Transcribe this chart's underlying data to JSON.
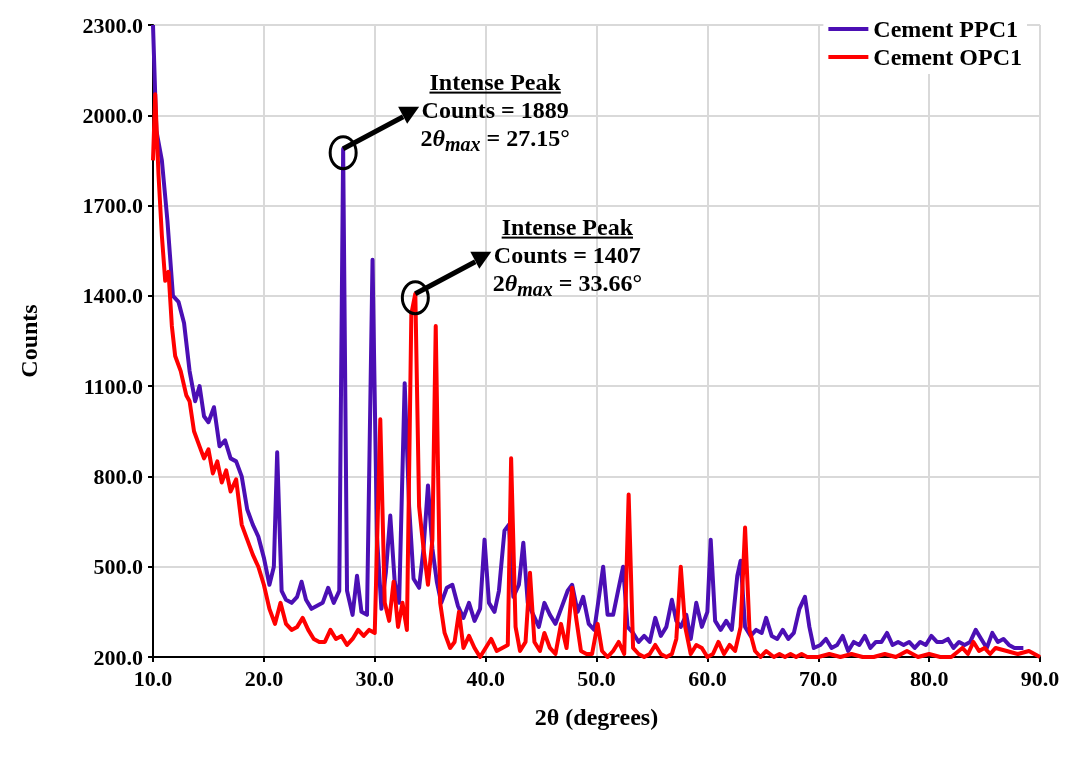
{
  "chart_data": {
    "type": "line",
    "xlabel": "2θ (degrees)",
    "ylabel": "Counts",
    "xlim": [
      10,
      90
    ],
    "xticks": [
      {
        "value": 10,
        "label": "10.0"
      },
      {
        "value": 20,
        "label": "20.0"
      },
      {
        "value": 30,
        "label": "30.0"
      },
      {
        "value": 40,
        "label": "40.0"
      },
      {
        "value": 50,
        "label": "50.0"
      },
      {
        "value": 60,
        "label": "60.0"
      },
      {
        "value": 70,
        "label": "70.0"
      },
      {
        "value": 80,
        "label": "80.0"
      },
      {
        "value": 90,
        "label": "90.0"
      }
    ],
    "ylim": [
      200,
      2300
    ],
    "yticks": [
      {
        "value": 200,
        "label": "200.0"
      },
      {
        "value": 500,
        "label": "500.0"
      },
      {
        "value": 800,
        "label": "800.0"
      },
      {
        "value": 1100,
        "label": "1100.0"
      },
      {
        "value": 1400,
        "label": "1400.0"
      },
      {
        "value": 1700,
        "label": "1700.0"
      },
      {
        "value": 2000,
        "label": "2000.0"
      },
      {
        "value": 2300,
        "label": "2300.0"
      }
    ],
    "grid": true,
    "legend": "top right",
    "marker": "none",
    "line_style": "solid",
    "series": [
      {
        "name": "Cement PPC1",
        "color": "#4b0fb4",
        "x": [
          10.0,
          10.3,
          10.8,
          11.3,
          11.8,
          12.3,
          12.8,
          13.3,
          13.8,
          14.2,
          14.6,
          15.0,
          15.5,
          16.0,
          16.5,
          17.0,
          17.5,
          18.0,
          18.5,
          19.0,
          19.5,
          20.0,
          20.5,
          20.9,
          21.2,
          21.6,
          22.0,
          22.5,
          23.0,
          23.4,
          23.8,
          24.3,
          24.8,
          25.3,
          25.8,
          26.3,
          26.8,
          27.15,
          27.5,
          28.0,
          28.4,
          28.8,
          29.3,
          29.8,
          30.2,
          30.6,
          31.0,
          31.4,
          31.8,
          32.2,
          32.7,
          33.1,
          33.5,
          34.0,
          34.4,
          34.8,
          35.2,
          35.6,
          36.0,
          36.5,
          37.0,
          37.5,
          38.0,
          38.5,
          39.0,
          39.5,
          39.9,
          40.3,
          40.8,
          41.2,
          41.7,
          42.1,
          42.5,
          43.0,
          43.4,
          43.8,
          44.3,
          44.8,
          45.3,
          45.8,
          46.3,
          46.8,
          47.4,
          47.8,
          48.3,
          48.8,
          49.3,
          49.8,
          50.3,
          50.6,
          51.0,
          51.5,
          52.0,
          52.4,
          52.8,
          53.3,
          53.8,
          54.3,
          54.8,
          55.3,
          55.8,
          56.3,
          56.8,
          57.2,
          57.6,
          58.1,
          58.5,
          59.0,
          59.5,
          60.0,
          60.3,
          60.7,
          61.2,
          61.7,
          62.2,
          62.7,
          63.0,
          63.4,
          63.9,
          64.4,
          64.9,
          65.3,
          65.8,
          66.3,
          66.8,
          67.3,
          67.8,
          68.3,
          68.8,
          69.2,
          69.6,
          70.2,
          70.7,
          71.2,
          71.7,
          72.2,
          72.7,
          73.2,
          73.7,
          74.2,
          74.7,
          75.2,
          75.7,
          76.2,
          76.7,
          77.2,
          77.7,
          78.2,
          78.7,
          79.2,
          79.7,
          80.2,
          80.7,
          81.2,
          81.7,
          82.2,
          82.7,
          83.2,
          83.7,
          84.2,
          84.7,
          85.2,
          85.7,
          86.2,
          86.7,
          87.2,
          87.7,
          88.2,
          88.5
        ],
        "values": [
          2300,
          1950,
          1850,
          1650,
          1400,
          1380,
          1310,
          1150,
          1050,
          1100,
          1000,
          980,
          1030,
          900,
          920,
          860,
          850,
          800,
          690,
          640,
          600,
          530,
          440,
          500,
          880,
          420,
          390,
          380,
          400,
          450,
          390,
          360,
          370,
          380,
          430,
          380,
          420,
          1889,
          420,
          340,
          470,
          350,
          340,
          1520,
          600,
          360,
          480,
          670,
          450,
          380,
          1110,
          700,
          460,
          430,
          560,
          770,
          560,
          450,
          380,
          430,
          440,
          370,
          330,
          380,
          320,
          360,
          590,
          380,
          350,
          420,
          620,
          640,
          400,
          440,
          580,
          380,
          340,
          300,
          380,
          340,
          310,
          360,
          420,
          440,
          350,
          400,
          310,
          290,
          420,
          500,
          340,
          340,
          430,
          500,
          300,
          280,
          250,
          270,
          250,
          330,
          270,
          300,
          390,
          320,
          300,
          340,
          260,
          380,
          300,
          350,
          590,
          320,
          290,
          320,
          290,
          470,
          520,
          300,
          270,
          290,
          280,
          330,
          270,
          260,
          290,
          260,
          280,
          360,
          400,
          300,
          230,
          240,
          260,
          230,
          240,
          270,
          220,
          250,
          240,
          270,
          230,
          250,
          250,
          280,
          240,
          250,
          240,
          250,
          230,
          250,
          240,
          270,
          250,
          250,
          260,
          230,
          250,
          240,
          250,
          290,
          260,
          230,
          280,
          250,
          260,
          240,
          230,
          230,
          230
        ]
      },
      {
        "name": "Cement OPC1",
        "color": "#ff0000",
        "x": [
          10.0,
          10.2,
          10.5,
          10.8,
          11.1,
          11.4,
          11.7,
          12.0,
          12.5,
          13.0,
          13.3,
          13.7,
          14.2,
          14.6,
          15.0,
          15.4,
          15.8,
          16.2,
          16.6,
          17.0,
          17.5,
          18.0,
          18.5,
          19.0,
          19.5,
          20.0,
          20.5,
          21.0,
          21.5,
          22.0,
          22.5,
          23.0,
          23.5,
          24.0,
          24.5,
          25.0,
          25.5,
          26.0,
          26.5,
          27.0,
          27.5,
          28.0,
          28.5,
          29.0,
          29.5,
          30.0,
          30.5,
          30.9,
          31.3,
          31.7,
          32.1,
          32.5,
          32.9,
          33.3,
          33.66,
          34.0,
          34.4,
          34.8,
          35.2,
          35.5,
          35.9,
          36.3,
          36.8,
          37.2,
          37.6,
          38.0,
          38.5,
          39.0,
          39.5,
          40.0,
          40.5,
          41.0,
          41.5,
          42.0,
          42.3,
          42.7,
          43.1,
          43.6,
          44.0,
          44.4,
          44.9,
          45.3,
          45.8,
          46.3,
          46.8,
          47.3,
          47.8,
          48.2,
          48.6,
          49.1,
          49.6,
          50.1,
          50.5,
          51.0,
          51.5,
          52.0,
          52.5,
          52.9,
          53.3,
          53.8,
          54.3,
          54.8,
          55.3,
          55.8,
          56.3,
          56.8,
          57.2,
          57.6,
          58.0,
          58.5,
          59.0,
          59.5,
          60.0,
          60.5,
          61.0,
          61.5,
          62.0,
          62.5,
          63.0,
          63.4,
          63.8,
          64.3,
          64.8,
          65.3,
          66.0,
          66.5,
          67.0,
          67.5,
          68.0,
          68.5,
          69.0,
          70.0,
          71.0,
          72.0,
          73.0,
          74.0,
          75.0,
          76.0,
          77.0,
          78.0,
          79.0,
          80.0,
          81.0,
          82.0,
          83.0,
          83.5,
          84.0,
          84.5,
          85.0,
          85.5,
          86.0,
          87.0,
          88.0,
          89.0,
          90.0
        ],
        "values": [
          1850,
          2070,
          1800,
          1600,
          1450,
          1480,
          1300,
          1200,
          1150,
          1070,
          1050,
          950,
          900,
          860,
          890,
          810,
          850,
          780,
          820,
          750,
          790,
          640,
          590,
          540,
          500,
          440,
          360,
          310,
          380,
          310,
          290,
          300,
          330,
          290,
          260,
          250,
          250,
          290,
          260,
          270,
          240,
          260,
          290,
          270,
          290,
          280,
          990,
          380,
          320,
          450,
          300,
          380,
          290,
          1340,
          1407,
          700,
          560,
          440,
          590,
          1300,
          380,
          280,
          230,
          250,
          350,
          230,
          270,
          230,
          200,
          230,
          260,
          220,
          230,
          240,
          860,
          300,
          220,
          250,
          480,
          250,
          220,
          280,
          230,
          210,
          310,
          230,
          430,
          320,
          220,
          210,
          210,
          310,
          220,
          200,
          220,
          250,
          210,
          740,
          230,
          210,
          200,
          210,
          240,
          210,
          200,
          210,
          260,
          500,
          300,
          210,
          240,
          230,
          200,
          210,
          250,
          210,
          240,
          220,
          300,
          630,
          290,
          220,
          200,
          220,
          200,
          210,
          200,
          210,
          200,
          210,
          200,
          200,
          210,
          200,
          210,
          200,
          200,
          210,
          200,
          220,
          200,
          210,
          200,
          200,
          230,
          210,
          250,
          220,
          230,
          210,
          230,
          220,
          210,
          220,
          200
        ]
      }
    ],
    "annotations": [
      {
        "text": "Intense Peak\nCounts = 1889\n2θ$_{max}$ = 27.15°",
        "x": 27.15,
        "y": 1889
      },
      {
        "text": "Intense Peak\nCounts = 1407\n2θ$_{max}$ = 33.66°",
        "x": 33.66,
        "y": 1407
      }
    ]
  }
}
